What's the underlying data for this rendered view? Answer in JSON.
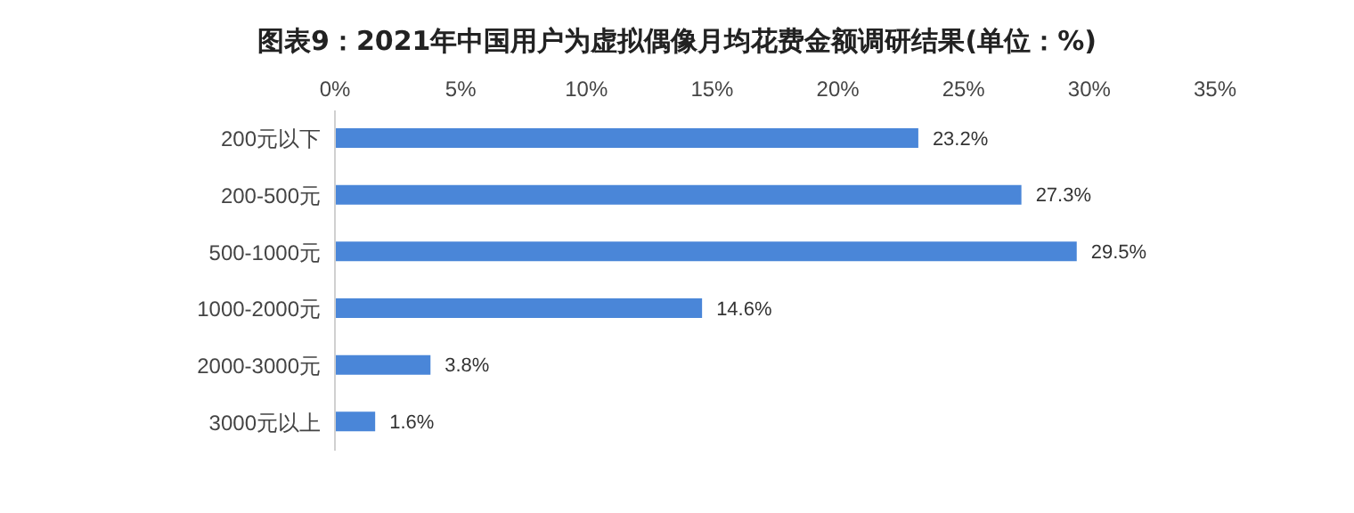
{
  "chart_data": {
    "type": "bar",
    "orientation": "horizontal",
    "title": "图表9：2021年中国用户为虚拟偶像月均花费金额调研结果(单位：%)",
    "categories": [
      "200元以下",
      "200-500元",
      "500-1000元",
      "1000-2000元",
      "2000-3000元",
      "3000元以上"
    ],
    "values": [
      23.2,
      27.3,
      29.5,
      14.6,
      3.8,
      1.6
    ],
    "value_labels": [
      "23.2%",
      "27.3%",
      "29.5%",
      "14.6%",
      "3.8%",
      "1.6%"
    ],
    "color": "#4a86d8",
    "xlim": [
      0,
      35
    ],
    "xticks": [
      {
        "value": 0,
        "label": "0%"
      },
      {
        "value": 5,
        "label": "5%"
      },
      {
        "value": 10,
        "label": "10%"
      },
      {
        "value": 15,
        "label": "15%"
      },
      {
        "value": 20,
        "label": "20%"
      },
      {
        "value": 25,
        "label": "25%"
      },
      {
        "value": 30,
        "label": "30%"
      },
      {
        "value": 35,
        "label": "35%"
      }
    ],
    "grid": false,
    "legend": false
  }
}
